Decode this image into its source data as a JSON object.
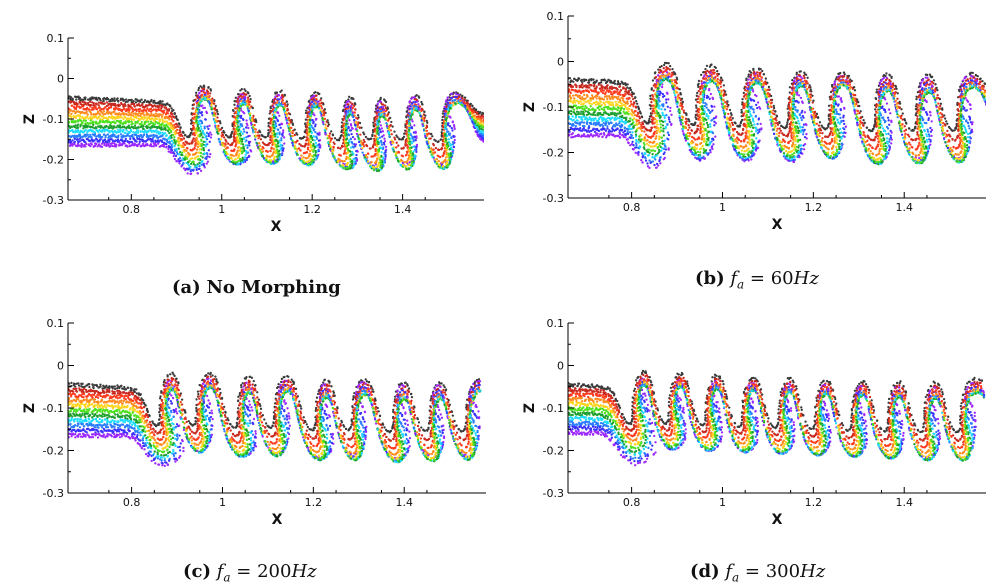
{
  "colors": {
    "palette": [
      "#3a3a3a",
      "#c8281e",
      "#ff3b1e",
      "#ff8a1e",
      "#ffd41e",
      "#4ce01e",
      "#1e9f2e",
      "#1edcff",
      "#2a7cff",
      "#3a30ff",
      "#9c28ff"
    ],
    "axis": "#000000"
  },
  "captions": {
    "a": {
      "tag": "(a)",
      "text": "No Morphing"
    },
    "b": {
      "tag": "(b)",
      "symbol": "f",
      "sub": "a",
      "eq": " = 60",
      "unit": "Hz"
    },
    "c": {
      "tag": "(c)",
      "symbol": "f",
      "sub": "a",
      "eq": " = 200",
      "unit": "Hz"
    },
    "d": {
      "tag": "(d)",
      "symbol": "f",
      "sub": "a",
      "eq": " = 300",
      "unit": "Hz"
    }
  },
  "chart_data": [
    {
      "type": "scatter",
      "panel": "a",
      "xlabel": "X",
      "ylabel": "Z",
      "xlim": [
        0.66,
        1.58
      ],
      "ylim": [
        -0.3,
        0.1
      ],
      "xticks": [
        "0.8",
        "1",
        "1.2",
        "1.4"
      ],
      "xtick_values": [
        0.8,
        1.0,
        1.2,
        1.4
      ],
      "yticks": [
        "0.1",
        "0",
        "-0.1",
        "-0.2",
        "-0.3"
      ],
      "ytick_values": [
        0.1,
        0.0,
        -0.1,
        -0.2,
        -0.3
      ],
      "layer_top": [
        [
          0.66,
          -0.048
        ],
        [
          1.0,
          -0.065
        ],
        [
          1.3,
          -0.082
        ],
        [
          1.58,
          -0.09
        ]
      ],
      "layer_bottom": [
        [
          0.66,
          -0.165
        ],
        [
          1.0,
          -0.162
        ],
        [
          1.3,
          -0.16
        ],
        [
          1.58,
          -0.158
        ]
      ],
      "vortices": [
        {
          "x": 0.95,
          "amp": 0.028
        },
        {
          "x": 1.04,
          "amp": 0.032
        },
        {
          "x": 1.12,
          "amp": 0.036
        },
        {
          "x": 1.2,
          "amp": 0.038
        },
        {
          "x": 1.28,
          "amp": 0.045
        },
        {
          "x": 1.35,
          "amp": 0.052
        },
        {
          "x": 1.42,
          "amp": 0.05
        },
        {
          "x": 1.5,
          "amp": 0.048
        }
      ]
    },
    {
      "type": "scatter",
      "panel": "b",
      "xlabel": "X",
      "ylabel": "Z",
      "xlim": [
        0.66,
        1.58
      ],
      "ylim": [
        -0.3,
        0.1
      ],
      "xticks": [
        "0.8",
        "1",
        "1.2",
        "1.4"
      ],
      "xtick_values": [
        0.8,
        1.0,
        1.2,
        1.4
      ],
      "yticks": [
        "0.1",
        "0",
        "-0.1",
        "-0.2",
        "-0.3"
      ],
      "ytick_values": [
        0.1,
        0.0,
        -0.1,
        -0.2,
        -0.3
      ],
      "layer_top": [
        [
          0.66,
          -0.04
        ],
        [
          1.0,
          -0.058
        ],
        [
          1.3,
          -0.075
        ],
        [
          1.58,
          -0.078
        ]
      ],
      "layer_bottom": [
        [
          0.66,
          -0.162
        ],
        [
          1.0,
          -0.162
        ],
        [
          1.3,
          -0.16
        ],
        [
          1.58,
          -0.158
        ]
      ],
      "vortices": [
        {
          "x": 0.86,
          "amp": 0.022
        },
        {
          "x": 0.96,
          "amp": 0.028
        },
        {
          "x": 1.06,
          "amp": 0.032
        },
        {
          "x": 1.16,
          "amp": 0.03
        },
        {
          "x": 1.25,
          "amp": 0.034
        },
        {
          "x": 1.35,
          "amp": 0.05
        },
        {
          "x": 1.44,
          "amp": 0.055
        },
        {
          "x": 1.53,
          "amp": 0.05
        }
      ]
    },
    {
      "type": "scatter",
      "panel": "c",
      "xlabel": "X",
      "ylabel": "Z",
      "xlim": [
        0.66,
        1.58
      ],
      "ylim": [
        -0.3,
        0.1
      ],
      "xticks": [
        "0.8",
        "1",
        "1.2",
        "1.4"
      ],
      "xtick_values": [
        0.8,
        1.0,
        1.2,
        1.4
      ],
      "yticks": [
        "0.1",
        "0",
        "-0.1",
        "-0.2",
        "-0.3"
      ],
      "ytick_values": [
        0.1,
        0.0,
        -0.1,
        -0.2,
        -0.3
      ],
      "layer_top": [
        [
          0.66,
          -0.045
        ],
        [
          1.0,
          -0.065
        ],
        [
          1.3,
          -0.08
        ],
        [
          1.58,
          -0.085
        ]
      ],
      "layer_bottom": [
        [
          0.66,
          -0.165
        ],
        [
          1.0,
          -0.165
        ],
        [
          1.3,
          -0.163
        ],
        [
          1.58,
          -0.162
        ]
      ],
      "vortices": [
        {
          "x": 0.88,
          "amp": 0.025
        },
        {
          "x": 0.96,
          "amp": 0.03
        },
        {
          "x": 1.05,
          "amp": 0.035
        },
        {
          "x": 1.13,
          "amp": 0.04
        },
        {
          "x": 1.22,
          "amp": 0.045
        },
        {
          "x": 1.3,
          "amp": 0.05
        },
        {
          "x": 1.39,
          "amp": 0.05
        },
        {
          "x": 1.47,
          "amp": 0.05
        },
        {
          "x": 1.55,
          "amp": 0.045
        }
      ]
    },
    {
      "type": "scatter",
      "panel": "d",
      "xlabel": "X",
      "ylabel": "Z",
      "xlim": [
        0.66,
        1.58
      ],
      "ylim": [
        -0.3,
        0.1
      ],
      "xticks": [
        "0.8",
        "1",
        "1.2",
        "1.4"
      ],
      "xtick_values": [
        0.8,
        1.0,
        1.2,
        1.4
      ],
      "yticks": [
        "0.1",
        "0",
        "-0.1",
        "-0.2",
        "-0.3"
      ],
      "ytick_values": [
        0.1,
        0.0,
        -0.1,
        -0.2,
        -0.3
      ],
      "layer_top": [
        [
          0.66,
          -0.045
        ],
        [
          1.0,
          -0.065
        ],
        [
          1.3,
          -0.08
        ],
        [
          1.58,
          -0.082
        ]
      ],
      "layer_bottom": [
        [
          0.66,
          -0.158
        ],
        [
          1.0,
          -0.162
        ],
        [
          1.3,
          -0.168
        ],
        [
          1.58,
          -0.175
        ]
      ],
      "vortices": [
        {
          "x": 0.82,
          "amp": 0.015
        },
        {
          "x": 0.9,
          "amp": 0.018
        },
        {
          "x": 0.98,
          "amp": 0.02
        },
        {
          "x": 1.06,
          "amp": 0.022
        },
        {
          "x": 1.14,
          "amp": 0.025
        },
        {
          "x": 1.22,
          "amp": 0.028
        },
        {
          "x": 1.3,
          "amp": 0.03
        },
        {
          "x": 1.38,
          "amp": 0.035
        },
        {
          "x": 1.46,
          "amp": 0.04
        },
        {
          "x": 1.54,
          "amp": 0.04
        }
      ]
    }
  ]
}
